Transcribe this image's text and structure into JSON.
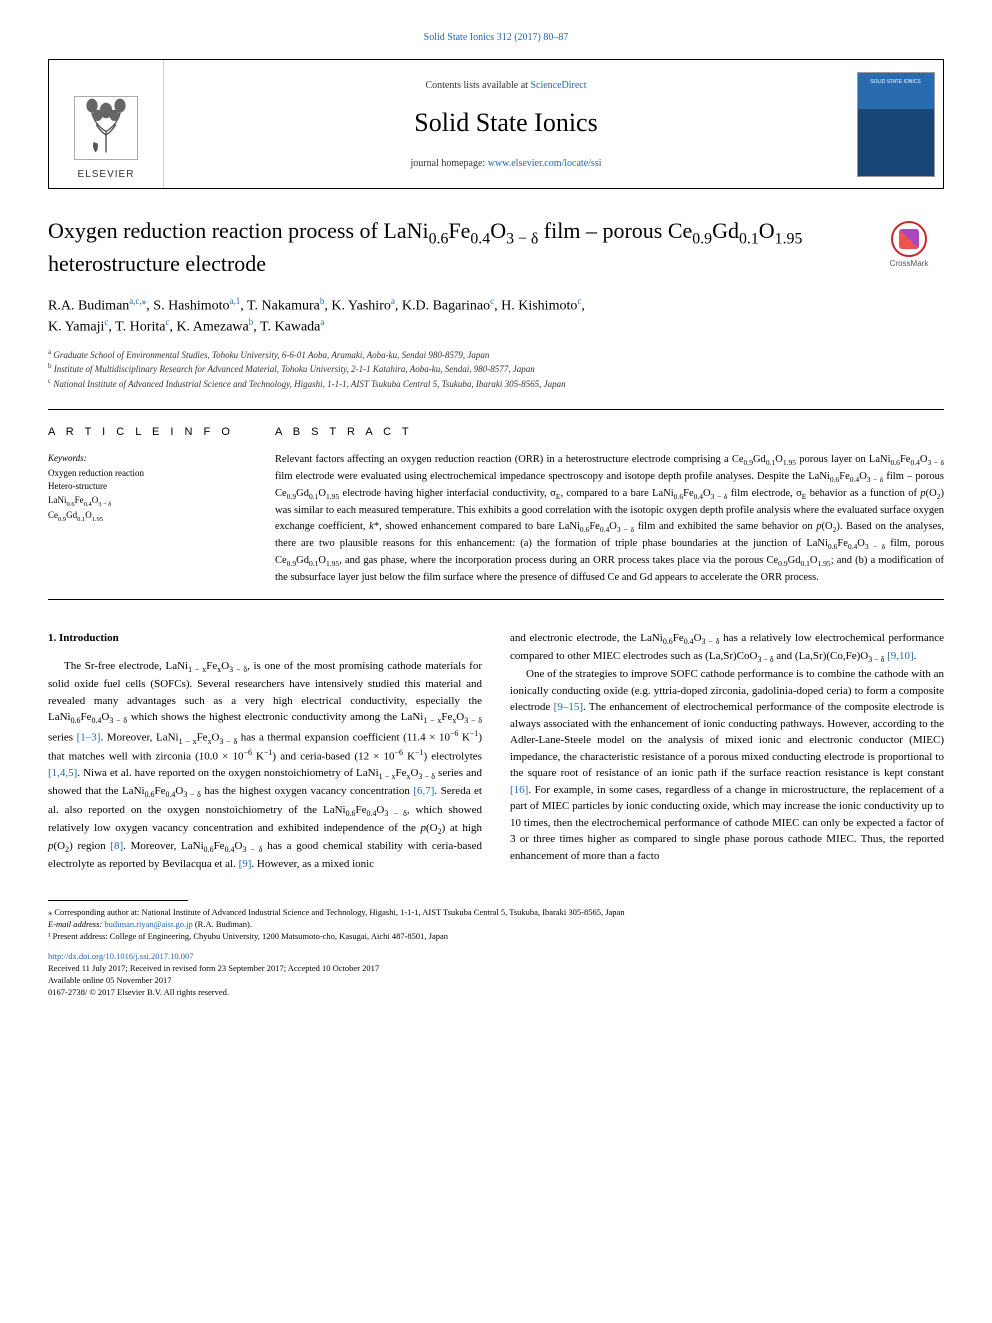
{
  "header": {
    "issue_ref": "Solid State Ionics 312 (2017) 80–87"
  },
  "masthead": {
    "contents_prefix": "Contents lists available at ",
    "contents_link": "ScienceDirect",
    "journal_name": "Solid State Ionics",
    "homepage_prefix": "journal homepage: ",
    "homepage_url": "www.elsevier.com/locate/ssi",
    "publisher": "ELSEVIER"
  },
  "crossmark": {
    "label": "CrossMark"
  },
  "title": {
    "html": "Oxygen reduction reaction process of LaNi<sub>0.6</sub>Fe<sub>0.4</sub>O<sub>3 − δ</sub> film – porous Ce<sub>0.9</sub>Gd<sub>0.1</sub>O<sub>1.95</sub> heterostructure electrode"
  },
  "authors": {
    "line1_html": "R.A. Budiman<sup class=\"sup-affil\">a,c,⁎</sup>, S. Hashimoto<sup class=\"sup-affil\">a,1</sup>, T. Nakamura<sup class=\"sup-affil\">b</sup>, K. Yashiro<sup class=\"sup-affil\">a</sup>, K.D. Bagarinao<sup class=\"sup-affil\">c</sup>, H. Kishimoto<sup class=\"sup-affil\">c</sup>,",
    "line2_html": "K. Yamaji<sup class=\"sup-affil\">c</sup>, T. Horita<sup class=\"sup-affil\">c</sup>, K. Amezawa<sup class=\"sup-affil\">b</sup>, T. Kawada<sup class=\"sup-affil\">a</sup>"
  },
  "affiliations": [
    {
      "letter": "a",
      "text": "Graduate School of Environmental Studies, Tohoku University, 6-6-01 Aoba, Aramaki, Aoba-ku, Sendai 980-8579, Japan"
    },
    {
      "letter": "b",
      "text": "Institute of Multidisciplinary Research for Advanced Material, Tohoku University, 2-1-1 Katahira, Aoba-ku, Sendai, 980-8577, Japan"
    },
    {
      "letter": "c",
      "text": "National Institute of Advanced Industrial Science and Technology, Higashi, 1-1-1, AIST Tsukuba Central 5, Tsukuba, Ibaraki 305-8565, Japan"
    }
  ],
  "article_info": {
    "heading": "A R T I C L E  I N F O",
    "keywords_label": "Keywords:",
    "keywords": [
      "Oxygen reduction reaction",
      "Hetero-structure",
      "LaNi<sub>0.6</sub>Fe<sub>0.4</sub>O<sub>3 − δ</sub>",
      "Ce<sub>0.9</sub>Gd<sub>0.1</sub>O<sub>1.95</sub>"
    ]
  },
  "abstract": {
    "heading": "A B S T R A C T",
    "text_html": "Relevant factors affecting an oxygen reduction reaction (ORR) in a heterostructure electrode comprising a Ce<sub>0.9</sub>Gd<sub>0.1</sub>O<sub>1.95</sub> porous layer on LaNi<sub>0.6</sub>Fe<sub>0.4</sub>O<sub>3 − δ</sub> film electrode were evaluated using electrochemical impedance spectroscopy and isotope depth profile analyses. Despite the LaNi<sub>0.6</sub>Fe<sub>0.4</sub>O<sub>3 − δ</sub> film – porous Ce<sub>0.9</sub>Gd<sub>0.1</sub>O<sub>1.95</sub> electrode having higher interfacial conductivity, σ<sub>E</sub>, compared to a bare LaNi<sub>0.6</sub>Fe<sub>0.4</sub>O<sub>3 − δ</sub> film electrode, σ<sub>E</sub> behavior as a function of <i>p</i>(O<sub>2</sub>) was similar to each measured temperature. This exhibits a good correlation with the isotopic oxygen depth profile analysis where the evaluated surface oxygen exchange coefficient, <i>k</i>*, showed enhancement compared to bare LaNi<sub>0.6</sub>Fe<sub>0.4</sub>O<sub>3 − δ</sub> film and exhibited the same behavior on <i>p</i>(O<sub>2</sub>). Based on the analyses, there are two plausible reasons for this enhancement: (a) the formation of triple phase boundaries at the junction of LaNi<sub>0.6</sub>Fe<sub>0.4</sub>O<sub>3 − δ</sub> film, porous Ce<sub>0.9</sub>Gd<sub>0.1</sub>O<sub>1.95</sub>, and gas phase, where the incorporation process during an ORR process takes place via the porous Ce<sub>0.9</sub>Gd<sub>0.1</sub>O<sub>1.95</sub>; and (b) a modification of the subsurface layer just below the film surface where the presence of diffused Ce and Gd appears to accelerate the ORR process."
  },
  "body": {
    "intro_heading": "1. Introduction",
    "col1_p1_html": "The Sr-free electrode, LaNi<sub>1 − x</sub>Fe<sub>x</sub>O<sub>3 − δ</sub>, is one of the most promising cathode materials for solid oxide fuel cells (SOFCs). Several researchers have intensively studied this material and revealed many advantages such as a very high electrical conductivity, especially the LaNi<sub>0.6</sub>Fe<sub>0.4</sub>O<sub>3 − δ</sub> which shows the highest electronic conductivity among the LaNi<sub>1 − x</sub>Fe<sub>x</sub>O<sub>3 − δ</sub> series <span class=\"cite\">[1–3]</span>. Moreover, LaNi<sub>1 − x</sub>Fe<sub>x</sub>O<sub>3 − δ</sub> has a thermal expansion coefficient (11.4 × 10<sup>−6</sup> K<sup>−1</sup>) that matches well with zirconia (10.0 × 10<sup>−6</sup> K<sup>−1</sup>) and ceria-based (12 × 10<sup>−6</sup> K<sup>−1</sup>) electrolytes <span class=\"cite\">[1,4,5]</span>. Niwa et al. have reported on the oxygen nonstoichiometry of LaNi<sub>1 − x</sub>Fe<sub>x</sub>O<sub>3 − δ</sub> series and showed that the LaNi<sub>0.6</sub>Fe<sub>0.4</sub>O<sub>3 − δ</sub> has the highest oxygen vacancy concentration <span class=\"cite\">[6,7]</span>. Sereda et al. also reported on the oxygen nonstoichiometry of the LaNi<sub>0.6</sub>Fe<sub>0.4</sub>O<sub>3 − δ</sub>, which showed relatively low oxygen vacancy concentration and exhibited independence of the <i>p</i>(O<sub>2</sub>) at high <i>p</i>(O<sub>2</sub>) region <span class=\"cite\">[8]</span>. Moreover, LaNi<sub>0.6</sub>Fe<sub>0.4</sub>O<sub>3 − δ</sub> has a good chemical stability with ceria-based electrolyte as reported by Bevilacqua et al. <span class=\"cite\">[9]</span>. However, as a mixed ionic",
    "col2_p1_html": "and electronic electrode, the LaNi<sub>0.6</sub>Fe<sub>0.4</sub>O<sub>3 − δ</sub> has a relatively low electrochemical performance compared to other MIEC electrodes such as (La,Sr)CoO<sub>3 − δ</sub> and (La,Sr)(Co,Fe)O<sub>3 − δ</sub> <span class=\"cite\">[9,10]</span>.",
    "col2_p2_html": "One of the strategies to improve SOFC cathode performance is to combine the cathode with an ionically conducting oxide (e.g. yttria-doped zirconia, gadolinia-doped ceria) to form a composite electrode <span class=\"cite\">[9–15]</span>. The enhancement of electrochemical performance of the composite electrode is always associated with the enhancement of ionic conducting pathways. However, according to the Adler-Lane-Steele model on the analysis of mixed ionic and electronic conductor (MIEC) impedance, the characteristic resistance of a porous mixed conducting electrode is proportional to the square root of resistance of an ionic path if the surface reaction resistance is kept constant <span class=\"cite\">[16]</span>. For example, in some cases, regardless of a change in microstructure, the replacement of a part of MIEC particles by ionic conducting oxide, which may increase the ionic conductivity up to 10 times, then the electrochemical performance of cathode MIEC can only be expected a factor of 3 or three times higher as compared to single phase porous cathode MIEC. Thus, the reported enhancement of more than a facto"
  },
  "footnotes": {
    "corresp": "⁎ Corresponding author at: National Institute of Advanced Industrial Science and Technology, Higashi, 1-1-1, AIST Tsukuba Central 5, Tsukuba, Ibaraki 305-8565, Japan",
    "email_label": "E-mail address: ",
    "email": "budiman.riyan@aist.go.jp",
    "email_suffix": " (R.A. Budiman).",
    "present": "¹ Present address: College of Engineering, Chyubu University, 1200 Matsumoto-cho, Kasugai, Aichi 487-8501, Japan",
    "doi": "http://dx.doi.org/10.1016/j.ssi.2017.10.007",
    "received": "Received 11 July 2017; Received in revised form 23 September 2017; Accepted 10 October 2017",
    "online": "Available online 05 November 2017",
    "copyright": "0167-2738/ © 2017 Elsevier B.V. All rights reserved."
  },
  "colors": {
    "link": "#2068b0",
    "text": "#000000",
    "cover_top": "#2a6bb0",
    "cover_bottom": "#1a4577",
    "crossmark_border": "#c62828"
  }
}
